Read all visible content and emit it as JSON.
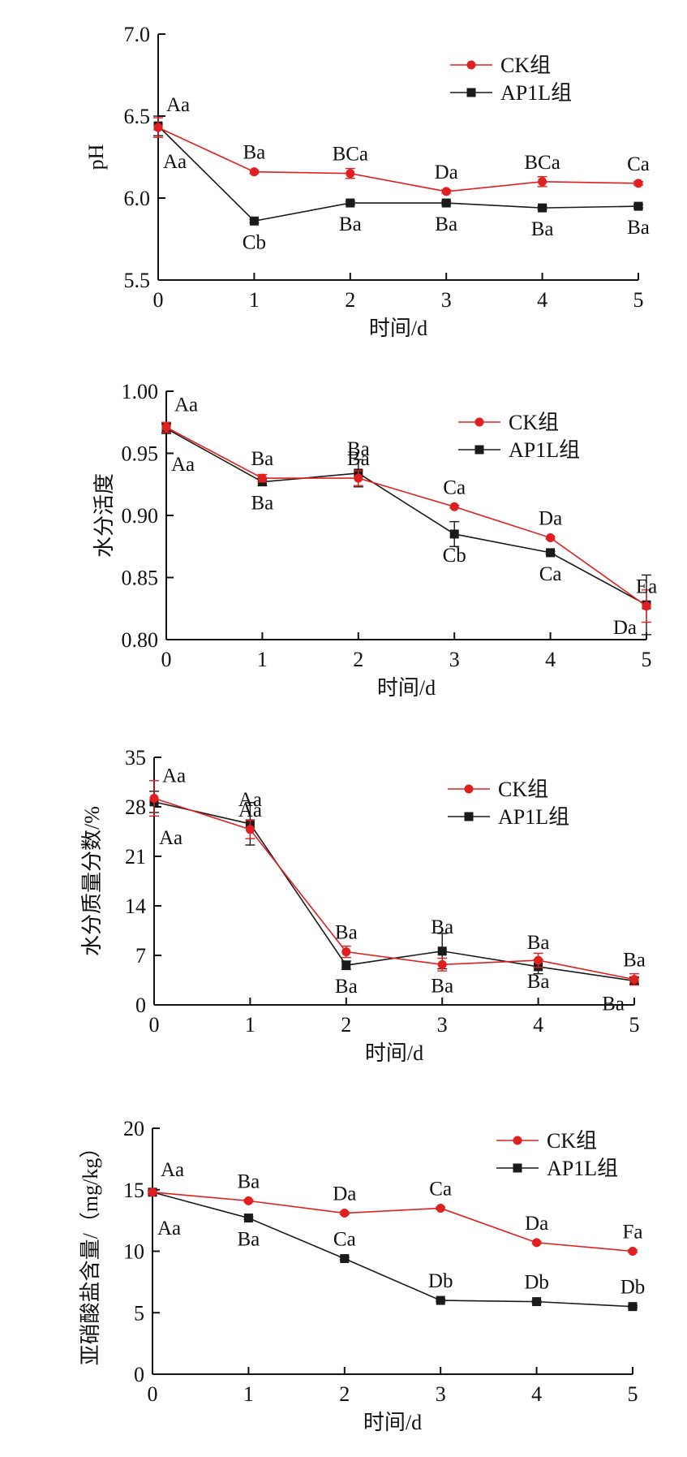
{
  "colors": {
    "ck": "#e02020",
    "ap": "#1a1a1a",
    "axis": "#111111"
  },
  "chart_data": [
    {
      "type": "line",
      "title": "",
      "xlabel": "时间/d",
      "ylabel": "pH",
      "x": [
        0,
        1,
        2,
        3,
        4,
        5
      ],
      "ylim": [
        5.5,
        7.0
      ],
      "yticks": [
        "5.5",
        "6.0",
        "6.5",
        "7.0"
      ],
      "legend": "top-right",
      "series": [
        {
          "name": "CK组",
          "marker": "circle",
          "values": [
            6.43,
            6.16,
            6.15,
            6.04,
            6.1,
            6.09
          ],
          "errors": [
            0.06,
            0.01,
            0.03,
            0.01,
            0.03,
            0.01
          ],
          "labels": [
            "Aa",
            "Ba",
            "BCa",
            "Da",
            "BCa",
            "Ca"
          ]
        },
        {
          "name": "AP1L组",
          "marker": "square",
          "values": [
            6.44,
            5.86,
            5.97,
            5.97,
            5.94,
            5.95
          ],
          "errors": [
            0.06,
            0.01,
            0.01,
            0.01,
            0.01,
            0.01
          ],
          "labels": [
            "Aa",
            "Cb",
            "Ba",
            "Ba",
            "Ba",
            "Ba"
          ]
        }
      ]
    },
    {
      "type": "line",
      "title": "",
      "xlabel": "时间/d",
      "ylabel": "水分活度",
      "x": [
        0,
        1,
        2,
        3,
        4,
        5
      ],
      "ylim": [
        0.8,
        1.0
      ],
      "yticks": [
        "0.80",
        "0.85",
        "0.90",
        "0.95",
        "1.00"
      ],
      "legend": "top-right",
      "series": [
        {
          "name": "CK组",
          "marker": "circle",
          "values": [
            0.971,
            0.93,
            0.93,
            0.907,
            0.882,
            0.827
          ],
          "errors": [
            0.004,
            0.003,
            0.006,
            0.001,
            0.001,
            0.013
          ],
          "labels": [
            "Aa",
            "Ba",
            "Ba",
            "Ca",
            "Da",
            "Ea"
          ]
        },
        {
          "name": "AP1L组",
          "marker": "square",
          "values": [
            0.97,
            0.927,
            0.934,
            0.885,
            0.87,
            0.828
          ],
          "errors": [
            0.004,
            0.003,
            0.011,
            0.01,
            0.001,
            0.024
          ],
          "labels": [
            "Aa",
            "Ba",
            "Ba",
            "Cb",
            "Ca",
            "Da"
          ]
        }
      ]
    },
    {
      "type": "line",
      "title": "",
      "xlabel": "时间/d",
      "ylabel": "水分质量分数/%",
      "x": [
        0,
        1,
        2,
        3,
        4,
        5
      ],
      "ylim": [
        0,
        35
      ],
      "yticks": [
        "0",
        "7",
        "14",
        "21",
        "28",
        "35"
      ],
      "legend": "top-right",
      "series": [
        {
          "name": "CK组",
          "marker": "circle",
          "values": [
            29.2,
            24.8,
            7.5,
            5.7,
            6.3,
            3.6
          ],
          "errors": [
            2.5,
            1.3,
            0.8,
            0.9,
            1.0,
            0.8
          ],
          "labels": [
            "Aa",
            "Aa",
            "Ba",
            "Ba",
            "Ba",
            "Ba"
          ]
        },
        {
          "name": "AP1L组",
          "marker": "square",
          "values": [
            28.7,
            25.6,
            5.6,
            7.6,
            5.4,
            3.4
          ],
          "errors": [
            1.5,
            3.0,
            0.6,
            2.5,
            1.0,
            0.5
          ],
          "labels": [
            "Aa",
            "Aa",
            "Ba",
            "Ba",
            "Ba",
            "Ba"
          ]
        }
      ]
    },
    {
      "type": "line",
      "title": "",
      "xlabel": "时间/d",
      "ylabel": "亚硝酸盐含量/（mg/kg）",
      "x": [
        0,
        1,
        2,
        3,
        4,
        5
      ],
      "ylim": [
        0,
        20
      ],
      "yticks": [
        "0",
        "5",
        "10",
        "15",
        "20"
      ],
      "legend": "top-right",
      "series": [
        {
          "name": "CK组",
          "marker": "circle",
          "values": [
            14.8,
            14.1,
            13.1,
            13.5,
            10.7,
            10.0
          ],
          "errors": [
            0.1,
            0.1,
            0.1,
            0.1,
            0.1,
            0.1
          ],
          "labels": [
            "Aa",
            "Ba",
            "Da",
            "Ca",
            "Da",
            "Fa"
          ]
        },
        {
          "name": "AP1L组",
          "marker": "square",
          "values": [
            14.8,
            12.7,
            9.4,
            6.0,
            5.9,
            5.5
          ],
          "errors": [
            0.1,
            0.1,
            0.1,
            0.1,
            0.1,
            0.1
          ],
          "labels": [
            "Aa",
            "Ba",
            "Ca",
            "Db",
            "Db",
            "Db"
          ]
        }
      ]
    }
  ]
}
